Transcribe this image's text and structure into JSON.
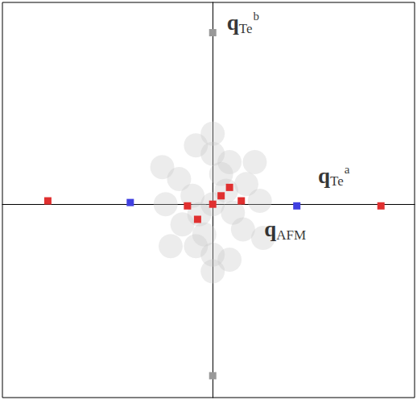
{
  "chart_data": {
    "type": "scatter",
    "xlim": [
      -1.25,
      1.2
    ],
    "ylim": [
      -1.15,
      1.2
    ],
    "tick_labels": false,
    "grid": false,
    "series": [
      {
        "color": "#c8c8c8",
        "marker": "circle",
        "values": [
          [
            0.0,
            0.0
          ],
          [
            -0.12,
            0.05
          ],
          [
            0.12,
            -0.05
          ],
          [
            0.05,
            0.18
          ],
          [
            -0.05,
            -0.18
          ],
          [
            -0.2,
            0.15
          ],
          [
            0.2,
            0.12
          ],
          [
            -0.18,
            -0.12
          ],
          [
            0.18,
            -0.15
          ],
          [
            0.0,
            0.3
          ],
          [
            0.0,
            -0.3
          ],
          [
            -0.28,
            0.0
          ],
          [
            0.28,
            0.02
          ],
          [
            -0.1,
            0.35
          ],
          [
            0.1,
            -0.33
          ],
          [
            0.1,
            0.25
          ],
          [
            -0.1,
            -0.25
          ],
          [
            0.25,
            0.25
          ],
          [
            -0.25,
            -0.25
          ],
          [
            0.08,
            0.08
          ],
          [
            -0.08,
            -0.06
          ],
          [
            -0.3,
            0.22
          ],
          [
            0.3,
            -0.2
          ],
          [
            0.0,
            0.42
          ],
          [
            0.0,
            -0.4
          ]
        ]
      },
      {
        "color": "#999999",
        "marker": "rect",
        "values": [
          [
            0.0,
            1.02
          ],
          [
            0.0,
            -1.02
          ]
        ]
      },
      {
        "color": "#e03030",
        "marker": "rect",
        "values": [
          [
            1.0,
            -0.01
          ],
          [
            -0.98,
            0.02
          ],
          [
            0.1,
            0.1
          ],
          [
            0.17,
            0.02
          ],
          [
            -0.15,
            -0.01
          ],
          [
            -0.09,
            -0.09
          ],
          [
            0.0,
            0.0
          ],
          [
            0.05,
            0.05
          ]
        ]
      },
      {
        "color": "#4040e0",
        "marker": "rect",
        "values": [
          [
            -0.49,
            0.01
          ],
          [
            0.5,
            -0.01
          ]
        ]
      }
    ],
    "annotations": [
      {
        "text": "q",
        "sub": "Te",
        "sup": "b",
        "x": 0.18,
        "y": 1.08
      },
      {
        "text": "q",
        "sub": "Te",
        "sup": "a",
        "x": 0.72,
        "y": 0.17
      },
      {
        "text": "q",
        "sub": "AFM",
        "x": 0.43,
        "y": -0.15
      }
    ]
  }
}
